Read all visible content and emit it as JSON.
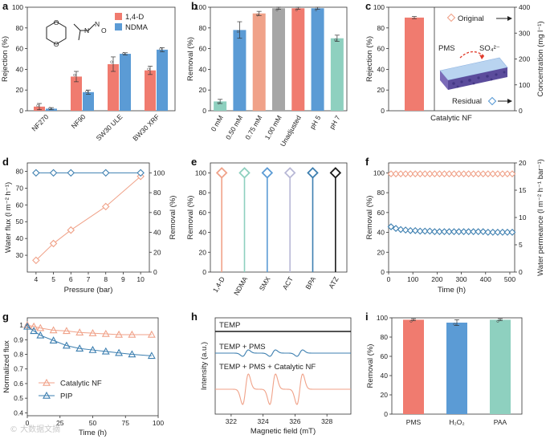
{
  "colors": {
    "red": "#f07b6f",
    "blue": "#5b9bd5",
    "gray": "#a6a6a6",
    "teal": "#8ed0bf",
    "orange": "#f0a289",
    "darkblue": "#3d7fb0",
    "black": "#1a1a1a"
  },
  "chart_data": [
    {
      "panel": "a",
      "type": "bar",
      "ylabel": "Rejection (%)",
      "ylim": [
        0,
        100
      ],
      "yticks": [
        0,
        20,
        40,
        60,
        80,
        100
      ],
      "categories": [
        "NF270",
        "NF90",
        "SW30 ULE",
        "BW30 XRF"
      ],
      "series": [
        {
          "name": "1,4-D",
          "values": [
            4,
            33,
            45,
            39
          ],
          "errors": [
            3,
            5,
            7,
            4
          ]
        },
        {
          "name": "NDMA",
          "values": [
            2,
            18,
            55,
            59
          ],
          "errors": [
            1,
            2,
            1,
            2
          ]
        }
      ],
      "legend": [
        "1,4-D",
        "NDMA"
      ]
    },
    {
      "panel": "b",
      "type": "bar",
      "ylabel": "Removal (%)",
      "ylim": [
        0,
        100
      ],
      "yticks": [
        0,
        20,
        40,
        60,
        80,
        100
      ],
      "categories": [
        "0 mM",
        "0.50 mM",
        "0.75 mM",
        "1.00 mM",
        "Unadjusted",
        "pH 5",
        "pH 7"
      ],
      "values": [
        9,
        78,
        94,
        99,
        99,
        99,
        70
      ],
      "errors": [
        2,
        8,
        2,
        1,
        1,
        1,
        3
      ]
    },
    {
      "panel": "c",
      "type": "bar",
      "xlabel": "Catalytic NF",
      "ylabel": "Rejection (%)",
      "ylim": [
        0,
        100
      ],
      "yticks": [
        0,
        20,
        40,
        60,
        80,
        100
      ],
      "y2label": "Concentration (mg l⁻¹)",
      "y2lim": [
        0,
        400
      ],
      "y2ticks": [
        0,
        100,
        200,
        300,
        400
      ],
      "values": [
        90
      ],
      "errors": [
        1
      ],
      "annotations": [
        "Original",
        "Residual",
        "PMS",
        "SO₄²⁻"
      ]
    },
    {
      "panel": "d",
      "type": "line",
      "xlabel": "Pressure (bar)",
      "xlim": [
        3.5,
        10.5
      ],
      "xticks": [
        4,
        5,
        6,
        7,
        8,
        9,
        10
      ],
      "ylabel": "Water flux (l m⁻² h⁻¹)",
      "ylim": [
        20,
        85
      ],
      "yticks": [
        30,
        40,
        50,
        60,
        70,
        80
      ],
      "y2label": "Removal (%)",
      "y2lim": [
        0,
        110
      ],
      "y2ticks": [
        0,
        20,
        40,
        60,
        80,
        100
      ],
      "series": [
        {
          "name": "Water flux",
          "x": [
            4,
            5,
            6,
            8,
            10
          ],
          "values": [
            27,
            37,
            45,
            59,
            77
          ]
        },
        {
          "name": "Removal",
          "x": [
            4,
            5,
            6,
            8,
            10
          ],
          "values": [
            100,
            100,
            100,
            100,
            100
          ]
        }
      ]
    },
    {
      "panel": "e",
      "type": "scatter",
      "ylabel": "Removal (%)",
      "ylim": [
        0,
        110
      ],
      "yticks": [
        0,
        20,
        40,
        60,
        80,
        100
      ],
      "categories": [
        "1,4-D",
        "NDMA",
        "SMX",
        "ACT",
        "BPA",
        "ATZ"
      ],
      "values": [
        100,
        100,
        100,
        100,
        100,
        100
      ]
    },
    {
      "panel": "f",
      "type": "line",
      "xlabel": "Time (h)",
      "xlim": [
        0,
        520
      ],
      "xticks": [
        0,
        100,
        200,
        300,
        400,
        500
      ],
      "ylabel": "Removal (%)",
      "ylim": [
        0,
        110
      ],
      "yticks": [
        0,
        20,
        40,
        60,
        80,
        100
      ],
      "y2label": "Water permeance (l m⁻² h⁻¹ bar⁻¹)",
      "y2lim": [
        0,
        20
      ],
      "y2ticks": [
        0,
        5,
        10,
        15,
        20
      ],
      "series": [
        {
          "name": "Removal",
          "x": [
            10,
            30,
            50,
            70,
            90,
            110,
            130,
            150,
            170,
            190,
            210,
            230,
            250,
            270,
            290,
            310,
            330,
            350,
            370,
            390,
            410,
            430,
            450,
            470,
            490,
            510
          ],
          "values": [
            99,
            99,
            99,
            99,
            99,
            99,
            99,
            99,
            99,
            99,
            99,
            99,
            99,
            99,
            99,
            99,
            99,
            99,
            99,
            99,
            99,
            99,
            99,
            99,
            99,
            99
          ]
        },
        {
          "name": "Water permeance",
          "x": [
            10,
            30,
            50,
            70,
            90,
            110,
            130,
            150,
            170,
            190,
            210,
            230,
            250,
            270,
            290,
            310,
            330,
            350,
            370,
            390,
            410,
            430,
            450,
            470,
            490,
            510
          ],
          "values": [
            8.3,
            8.0,
            7.8,
            7.7,
            7.6,
            7.6,
            7.5,
            7.5,
            7.5,
            7.4,
            7.4,
            7.4,
            7.4,
            7.4,
            7.4,
            7.4,
            7.4,
            7.4,
            7.4,
            7.4,
            7.3,
            7.3,
            7.3,
            7.3,
            7.3,
            7.3
          ]
        }
      ]
    },
    {
      "panel": "g",
      "type": "line",
      "xlabel": "Time (h)",
      "xlim": [
        0,
        100
      ],
      "xticks": [
        0,
        25,
        50,
        75,
        100
      ],
      "ylabel": "Normalized flux",
      "ylim": [
        0.38,
        1.05
      ],
      "yticks": [
        0.4,
        0.5,
        0.6,
        0.7,
        0.8,
        0.9,
        1.0
      ],
      "legend": [
        "Catalytic NF",
        "PIP"
      ],
      "series": [
        {
          "name": "Catalytic NF",
          "x": [
            0,
            5,
            10,
            20,
            30,
            40,
            50,
            60,
            70,
            80,
            95
          ],
          "values": [
            1.0,
            0.99,
            0.98,
            0.965,
            0.96,
            0.95,
            0.945,
            0.94,
            0.935,
            0.935,
            0.935
          ]
        },
        {
          "name": "PIP",
          "x": [
            0,
            5,
            10,
            20,
            30,
            40,
            50,
            60,
            70,
            80,
            95
          ],
          "values": [
            0.99,
            0.96,
            0.93,
            0.895,
            0.86,
            0.84,
            0.83,
            0.82,
            0.81,
            0.8,
            0.79
          ]
        }
      ]
    },
    {
      "panel": "h",
      "type": "line",
      "xlabel": "Magnetic field (mT)",
      "xlim": [
        321,
        329.5
      ],
      "xticks": [
        322,
        324,
        326,
        328
      ],
      "ylabel": "Intensity (a.u.)",
      "series": [
        {
          "name": "TEMP",
          "peaks": []
        },
        {
          "name": "TEMP + PMS",
          "peaks": [
            322.9,
            324.6,
            326.3
          ]
        },
        {
          "name": "TEMP + PMS + Catalytic NF",
          "peaks": [
            322.9,
            324.6,
            326.3
          ]
        }
      ]
    },
    {
      "panel": "i",
      "type": "bar",
      "ylabel": "Removal (%)",
      "ylim": [
        0,
        100
      ],
      "yticks": [
        0,
        20,
        40,
        60,
        80,
        100
      ],
      "categories": [
        "PMS",
        "H₂O₂",
        "PAA"
      ],
      "values": [
        98,
        95,
        98
      ],
      "errors": [
        1,
        3,
        1
      ]
    }
  ],
  "watermark": "© 大数据文摘"
}
